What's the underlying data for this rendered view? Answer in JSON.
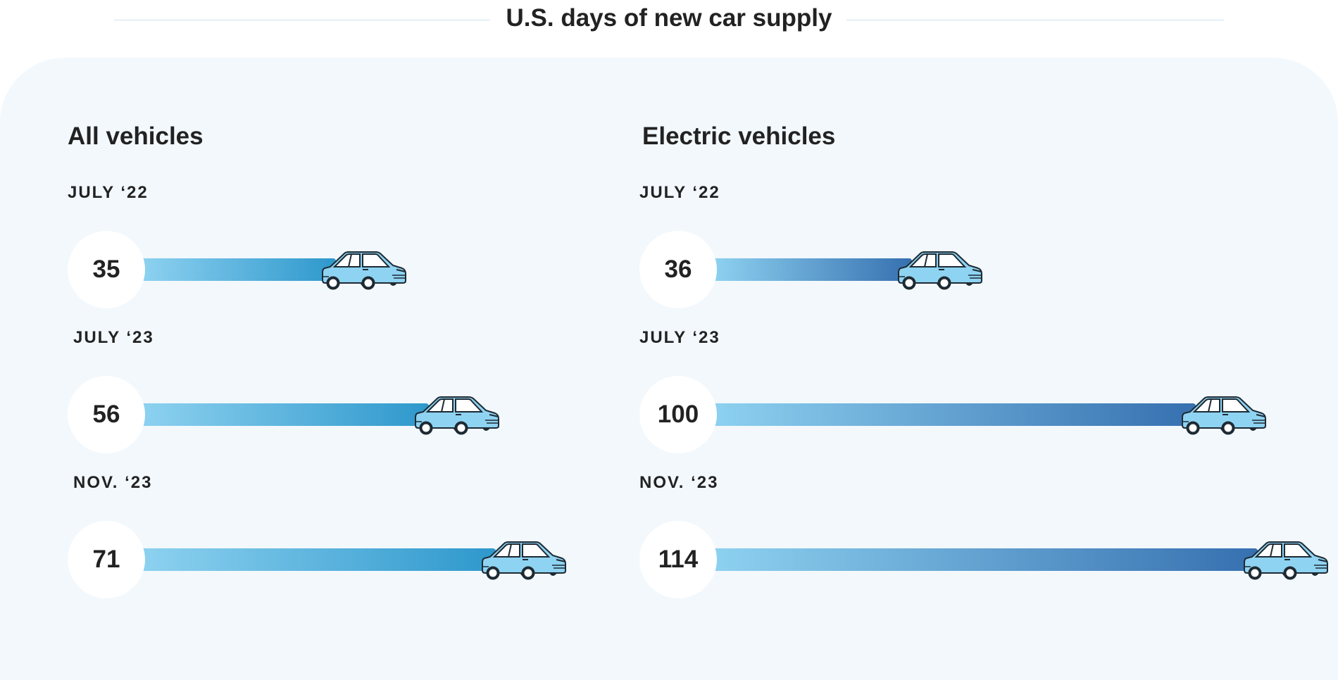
{
  "title": "U.S. days of new car supply",
  "colors": {
    "panel": "#f2f8fc",
    "bar_light": "#8dd1f0",
    "bar_dark_all": "#2e98cc",
    "bar_dark_ev": "#3670b0",
    "car_body": "#8fd3f2",
    "outline": "#1e2a33"
  },
  "icons": {
    "car": "car-icon"
  },
  "chart_data": [
    {
      "type": "bar",
      "title": "All vehicles",
      "categories": [
        "JULY ‘22",
        "JULY ‘23",
        "NOV. ‘23"
      ],
      "values": [
        35,
        56,
        71
      ],
      "xlim": [
        0,
        114
      ],
      "grid": false
    },
    {
      "type": "bar",
      "title": "Electric vehicles",
      "categories": [
        "JULY ‘22",
        "JULY ‘23",
        "NOV. ‘23"
      ],
      "values": [
        36,
        100,
        114
      ],
      "xlim": [
        0,
        114
      ],
      "grid": false
    }
  ]
}
